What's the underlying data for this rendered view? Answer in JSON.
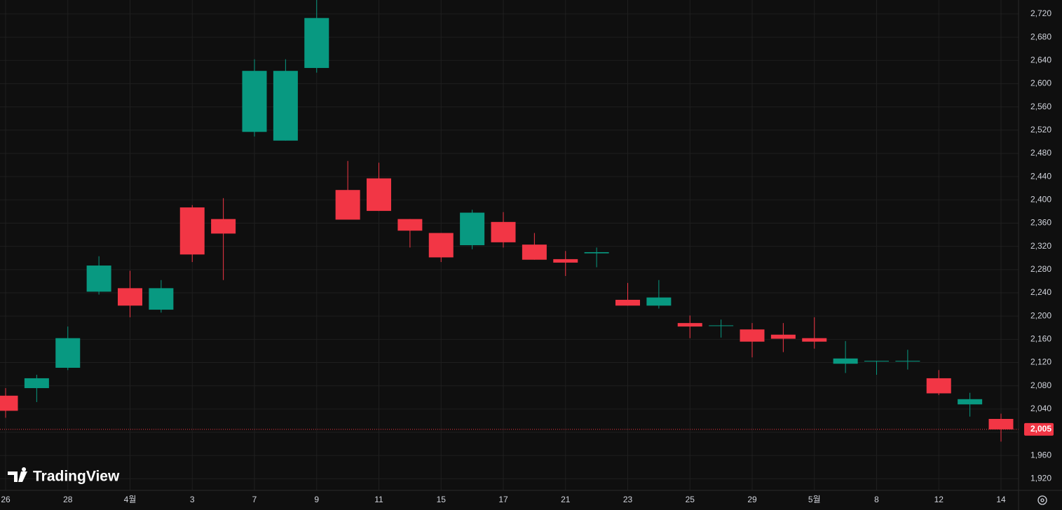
{
  "chart_data": {
    "type": "candlestick",
    "categories": [
      "26",
      null,
      "28",
      null,
      "4월",
      null,
      "3",
      null,
      "7",
      null,
      "9",
      null,
      "11",
      null,
      "15",
      null,
      "17",
      null,
      "21",
      null,
      "23",
      null,
      "25",
      null,
      "29",
      null,
      "5월",
      null,
      "8",
      null,
      "12",
      null,
      "14"
    ],
    "open": [
      2063,
      2076,
      2111,
      2242,
      2248,
      2211,
      2387,
      2367,
      2517,
      2502,
      2627,
      2417,
      2437,
      2367,
      2343,
      2322,
      2362,
      2323,
      2298,
      2308,
      2228,
      2218,
      2188,
      2183,
      2177,
      2168,
      2162,
      2118,
      2122,
      2122,
      2093,
      2048,
      2023
    ],
    "high": [
      2076,
      2099,
      2182,
      2303,
      2278,
      2262,
      2391,
      2403,
      2642,
      2642,
      2744,
      2467,
      2464,
      2367,
      2343,
      2383,
      2379,
      2343,
      2312,
      2318,
      2257,
      2262,
      2201,
      2194,
      2188,
      2188,
      2198,
      2157,
      2123,
      2142,
      2107,
      2068,
      2032
    ],
    "low": [
      2025,
      2052,
      2107,
      2237,
      2198,
      2206,
      2293,
      2262,
      2509,
      2502,
      2619,
      2366,
      2381,
      2318,
      2293,
      2315,
      2318,
      2297,
      2269,
      2284,
      2218,
      2213,
      2162,
      2163,
      2129,
      2138,
      2144,
      2102,
      2099,
      2108,
      2064,
      2027,
      1984
    ],
    "close": [
      2037,
      2093,
      2162,
      2287,
      2218,
      2248,
      2306,
      2342,
      2622,
      2622,
      2713,
      2366,
      2381,
      2347,
      2301,
      2378,
      2327,
      2297,
      2292,
      2310,
      2218,
      2232,
      2182,
      2184,
      2156,
      2161,
      2156,
      2127,
      2123,
      2123,
      2067,
      2057,
      2005
    ],
    "up_color": "#089981",
    "down_color": "#f23645",
    "ylim": [
      1900,
      2744
    ],
    "yticks": [
      {
        "value": 1920,
        "label": "1,920"
      },
      {
        "value": 1960,
        "label": "1,960"
      },
      {
        "value": 2000,
        "label": "2,000"
      },
      {
        "value": 2040,
        "label": "2,040"
      },
      {
        "value": 2080,
        "label": "2,080"
      },
      {
        "value": 2120,
        "label": "2,120"
      },
      {
        "value": 2160,
        "label": "2,160"
      },
      {
        "value": 2200,
        "label": "2,200"
      },
      {
        "value": 2240,
        "label": "2,240"
      },
      {
        "value": 2280,
        "label": "2,280"
      },
      {
        "value": 2320,
        "label": "2,320"
      },
      {
        "value": 2360,
        "label": "2,360"
      },
      {
        "value": 2400,
        "label": "2,400"
      },
      {
        "value": 2440,
        "label": "2,440"
      },
      {
        "value": 2480,
        "label": "2,480"
      },
      {
        "value": 2520,
        "label": "2,520"
      },
      {
        "value": 2560,
        "label": "2,560"
      },
      {
        "value": 2600,
        "label": "2,600"
      },
      {
        "value": 2640,
        "label": "2,640"
      },
      {
        "value": 2680,
        "label": "2,680"
      },
      {
        "value": 2720,
        "label": "2,720"
      }
    ],
    "last_price": {
      "value": 2005,
      "label": "2,005"
    },
    "grid": true,
    "brand": "TradingView"
  }
}
